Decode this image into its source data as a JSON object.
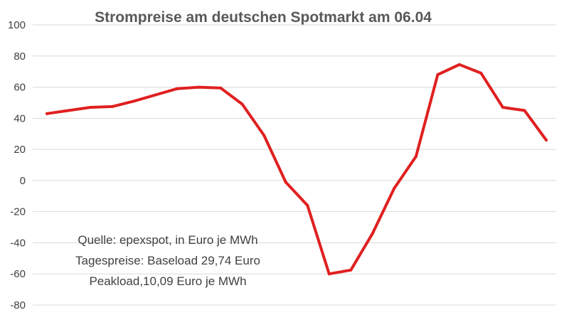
{
  "chart_data": {
    "type": "line",
    "title": "Strompreise am deutschen Spotmarkt am 06.04",
    "xlabel": "",
    "ylabel": "",
    "ylim": [
      -80,
      100
    ],
    "yticks": [
      "100",
      "80",
      "60",
      "40",
      "20",
      "0",
      "-20",
      "-40",
      "-60",
      "-80"
    ],
    "grid": true,
    "legend": "none",
    "color": "#e02020",
    "x": [
      1,
      2,
      3,
      4,
      5,
      6,
      7,
      8,
      9,
      10,
      11,
      12,
      13,
      14,
      15,
      16,
      17,
      18,
      19,
      20,
      21,
      22,
      23,
      24
    ],
    "series": [
      {
        "values": [
          43,
          45,
          47,
          47.5,
          51,
          55,
          59,
          60,
          59.5,
          49,
          29,
          -1,
          -16,
          -60,
          -57.5,
          -34,
          -5,
          15.5,
          68,
          74.5,
          69,
          47,
          45,
          26
        ]
      }
    ],
    "annotation": [
      "Quelle: epexspot, in Euro je MWh",
      "Tagespreise: Baseload 29,74 Euro",
      "Peakload,10,09 Euro je MWh"
    ]
  }
}
